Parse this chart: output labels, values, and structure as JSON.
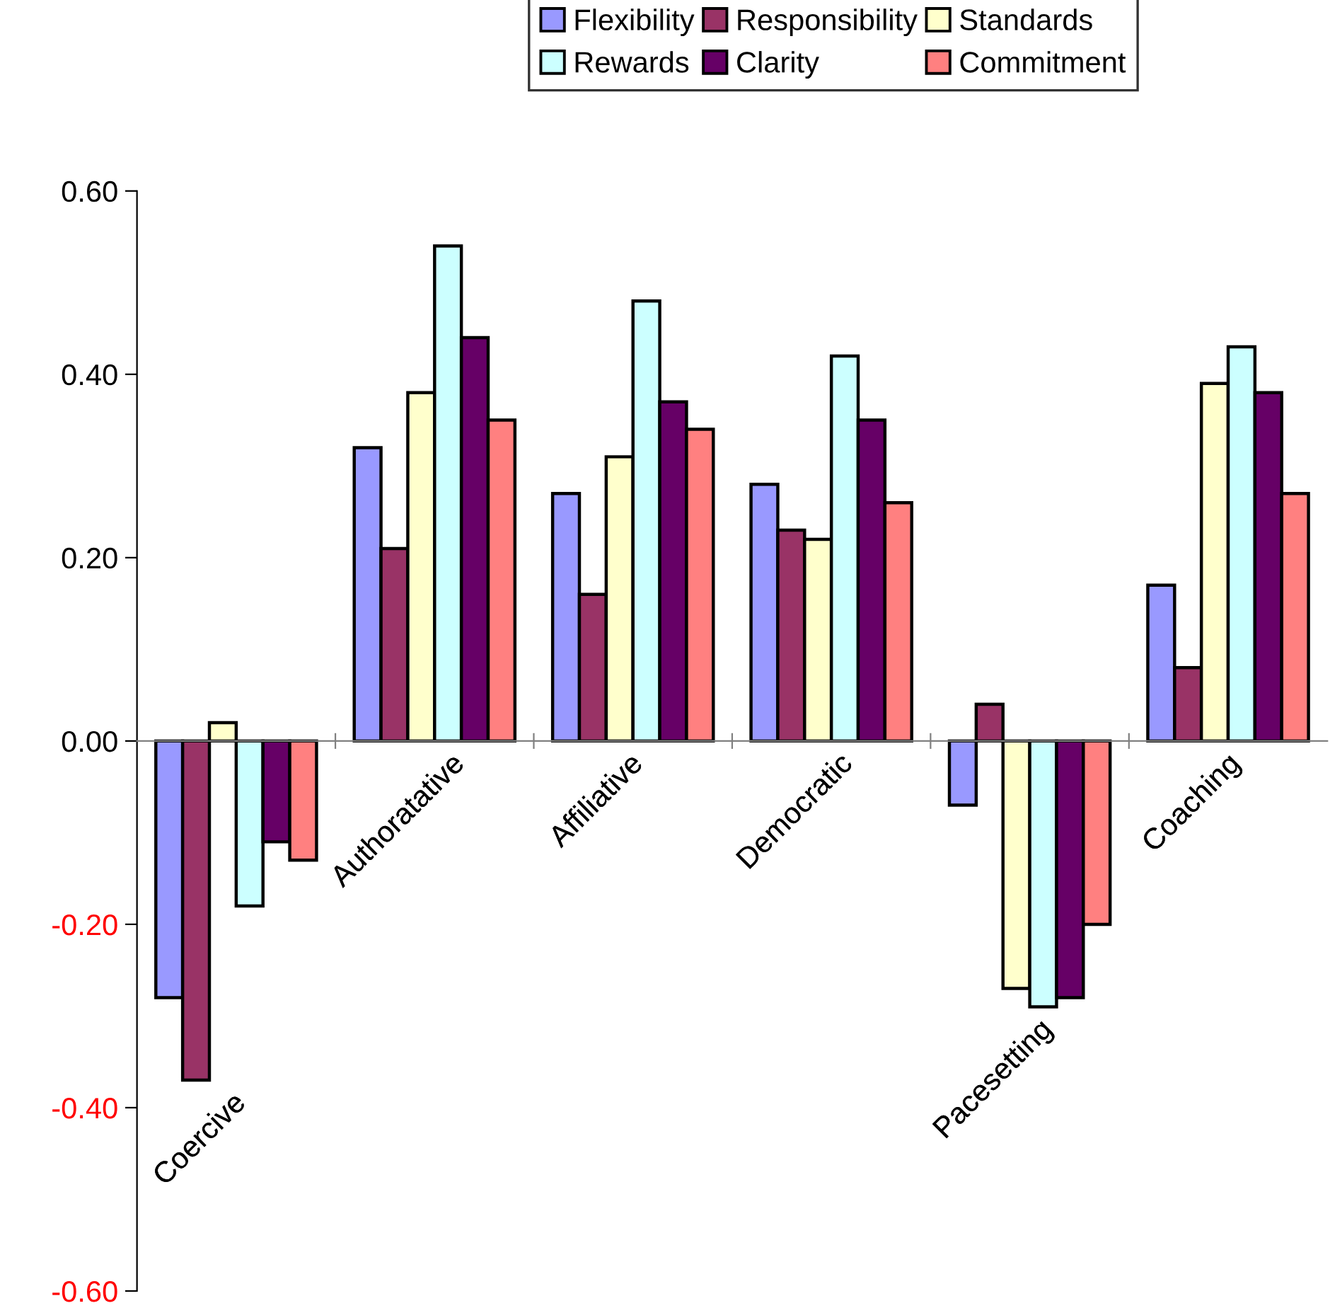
{
  "chart_data": {
    "type": "bar",
    "categories": [
      "Coercive",
      "Authoratative",
      "Affiliative",
      "Democratic",
      "Pacesetting",
      "Coaching"
    ],
    "series": [
      {
        "name": "Flexibility",
        "color": "#9999ff",
        "values": [
          -0.28,
          0.32,
          0.27,
          0.28,
          -0.07,
          0.17
        ]
      },
      {
        "name": "Responsibility",
        "color": "#993366",
        "values": [
          -0.37,
          0.21,
          0.16,
          0.23,
          0.04,
          0.08
        ]
      },
      {
        "name": "Standards",
        "color": "#ffffcc",
        "values": [
          0.02,
          0.38,
          0.31,
          0.22,
          -0.27,
          0.39
        ]
      },
      {
        "name": "Rewards",
        "color": "#ccffff",
        "values": [
          -0.18,
          0.54,
          0.48,
          0.42,
          -0.29,
          0.43
        ]
      },
      {
        "name": "Clarity",
        "color": "#660066",
        "values": [
          -0.11,
          0.44,
          0.37,
          0.35,
          -0.28,
          0.38
        ]
      },
      {
        "name": "Commitment",
        "color": "#ff8080",
        "values": [
          -0.13,
          0.35,
          0.34,
          0.26,
          -0.2,
          0.27
        ]
      }
    ],
    "ylim": [
      -0.6,
      0.6
    ],
    "yticks": [
      {
        "value": -0.6,
        "label": "-0.60"
      },
      {
        "value": -0.4,
        "label": "-0.40"
      },
      {
        "value": -0.2,
        "label": "-0.20"
      },
      {
        "value": 0,
        "label": "0.00"
      },
      {
        "value": 0.2,
        "label": "0.20"
      },
      {
        "value": 0.4,
        "label": "0.40"
      },
      {
        "value": 0.6,
        "label": "0.60"
      }
    ],
    "grid": false,
    "legend": "top"
  }
}
